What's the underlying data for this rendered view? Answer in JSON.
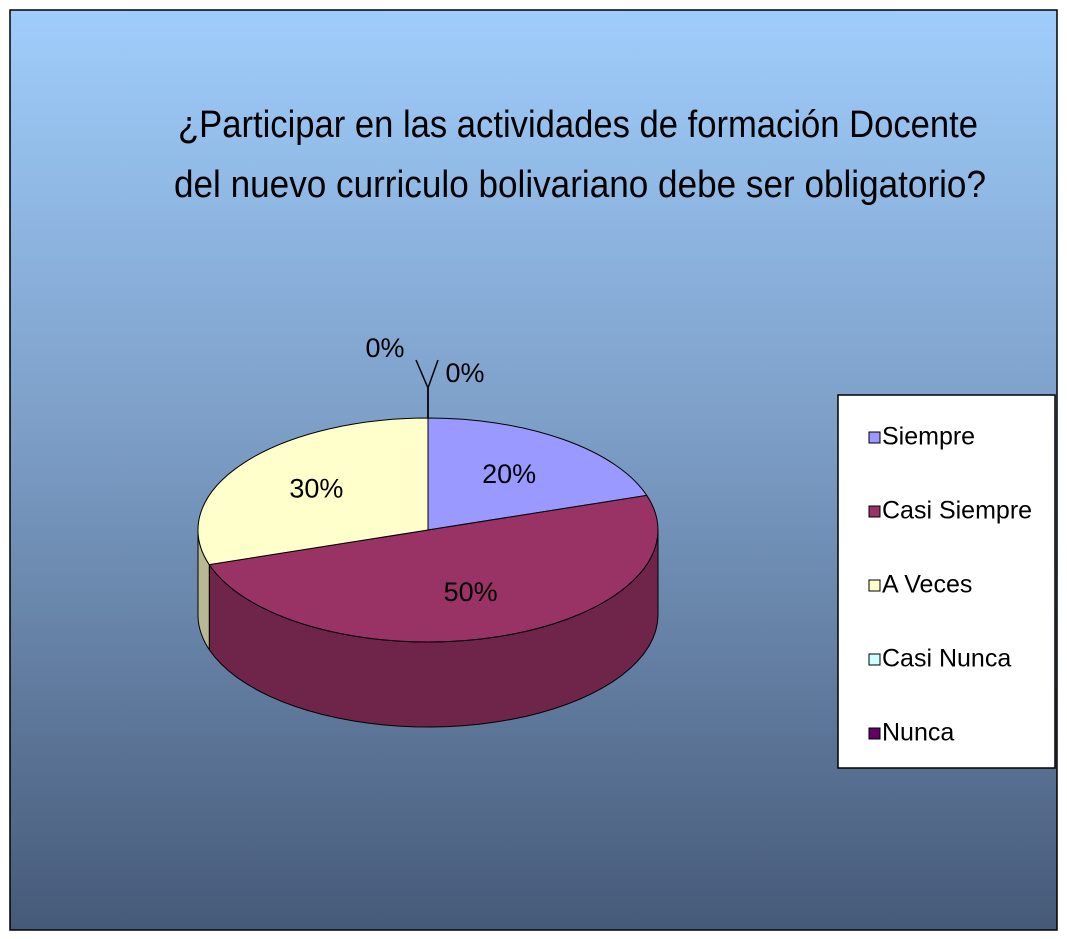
{
  "chart_data": {
    "type": "pie",
    "title": [
      "¿Participar en las actividades de formación Docente",
      "del nuevo curriculo bolivariano debe ser obligatorio?"
    ],
    "categories": [
      "Siempre",
      "Casi Siempre",
      "A Veces",
      "Casi Nunca",
      "Nunca"
    ],
    "values": [
      20,
      50,
      30,
      0,
      0
    ],
    "value_labels": [
      "20%",
      "50%",
      "30%",
      "0%",
      "0%"
    ],
    "colors": [
      "#9999ff",
      "#993366",
      "#ffffcc",
      "#ccffff",
      "#660066"
    ],
    "legend": "right"
  }
}
